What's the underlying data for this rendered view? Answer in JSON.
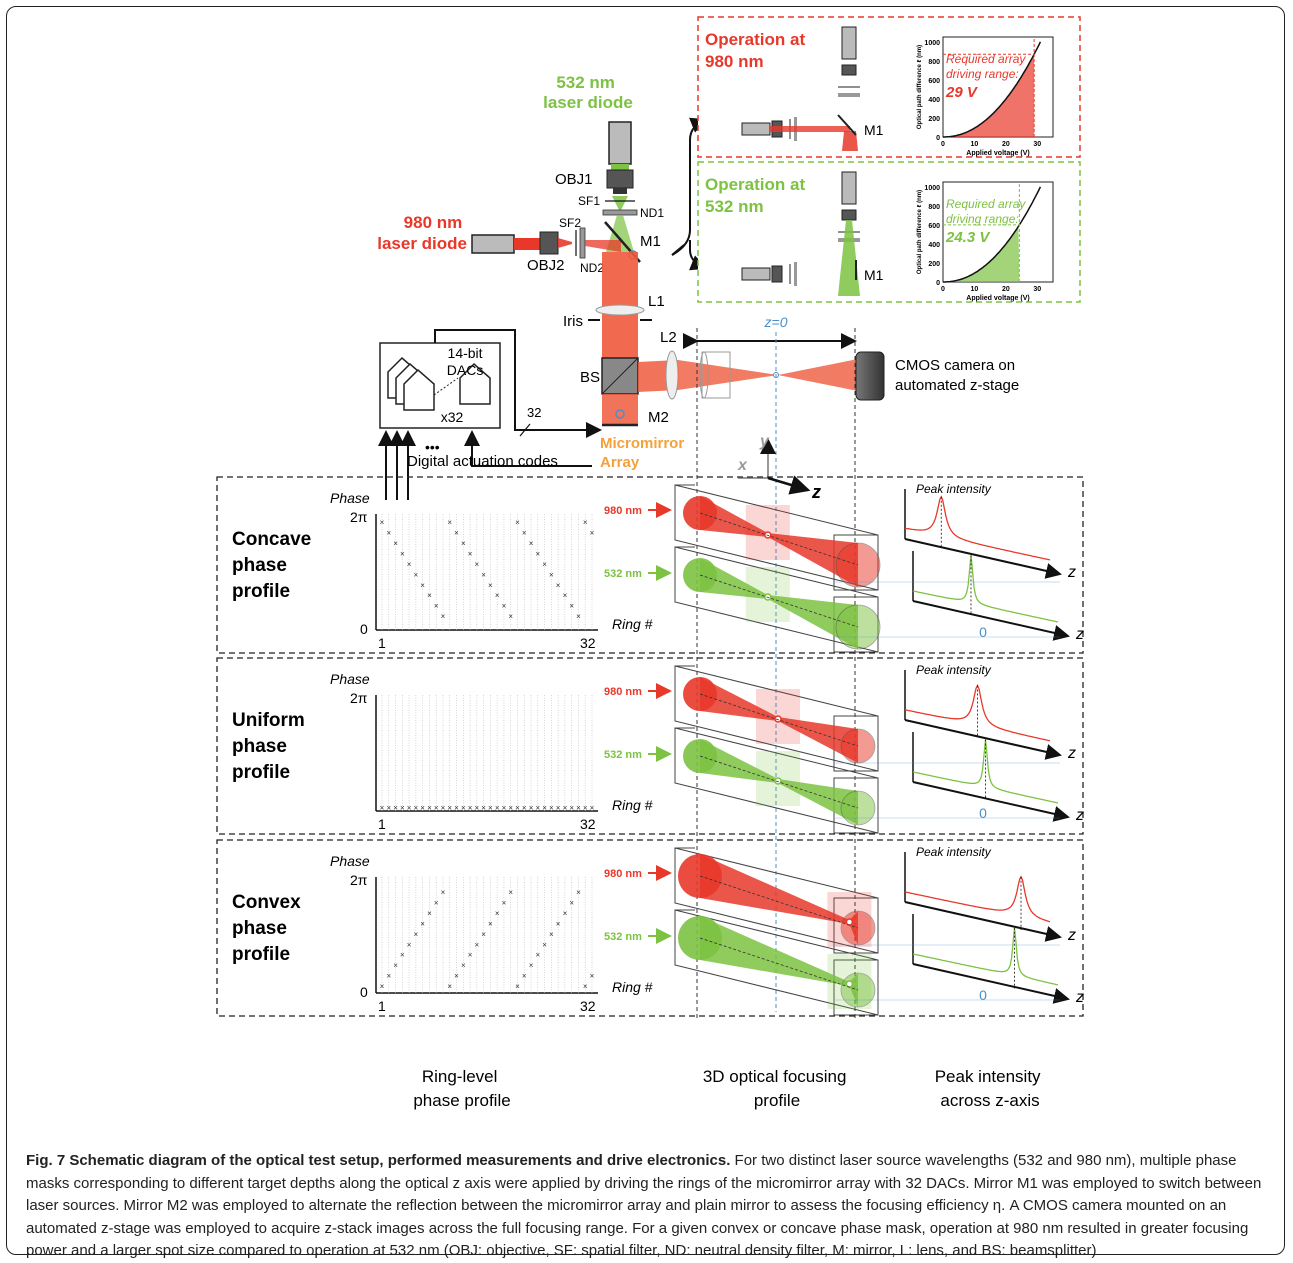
{
  "setup": {
    "laser532": [
      "532 nm",
      "laser diode"
    ],
    "laser980": [
      "980 nm",
      "laser diode"
    ],
    "obj1": "OBJ1",
    "obj2": "OBJ2",
    "sf1": "SF1",
    "sf2": "SF2",
    "nd1": "ND1",
    "nd2": "ND2",
    "m1": "M1",
    "m2": "M2",
    "l1": "L1",
    "l2": "L2",
    "iris": "Iris",
    "bs": "BS",
    "micromirror": [
      "Micromirror",
      "Array"
    ],
    "camera": [
      "CMOS camera on",
      "automated z-stage"
    ],
    "z0": "z=0",
    "dacs": [
      "14-bit",
      "DACs",
      "x32"
    ],
    "bus_width": "32",
    "digital_codes": "Digital actuation codes",
    "ellipsis": "•••",
    "axes": {
      "x": "x",
      "y": "y",
      "z": "z"
    },
    "colors": {
      "red": "#e8382a",
      "green": "#7dc242",
      "orange": "#f4a13b",
      "blue": "#4a90c8"
    }
  },
  "insets": [
    {
      "title": [
        "Operation at",
        "980 nm"
      ],
      "ylabel": "Optical path difference ℓ (nm)",
      "xlabel": "Applied voltage (V)",
      "yticks": [
        "0",
        "200",
        "400",
        "600",
        "800",
        "1000"
      ],
      "xticks": [
        "0",
        "10",
        "20",
        "30"
      ],
      "annotation": [
        "Required array",
        "driving range:"
      ],
      "value": "29 V",
      "mirror": "M1"
    },
    {
      "title": [
        "Operation at",
        "532 nm"
      ],
      "ylabel": "Optical path difference ℓ (nm)",
      "xlabel": "Applied voltage (V)",
      "yticks": [
        "0",
        "200",
        "400",
        "600",
        "800",
        "1000"
      ],
      "xticks": [
        "0",
        "10",
        "20",
        "30"
      ],
      "annotation": [
        "Required array",
        "driving range:"
      ],
      "value": "24.3 V",
      "mirror": "M1"
    }
  ],
  "rows": [
    {
      "name": [
        "Concave",
        "phase",
        "profile"
      ],
      "phase_label": "Phase",
      "two_pi": "2π",
      "zero": "0",
      "ring_label": "Ring #",
      "ring_start": "1",
      "ring_end": "32",
      "wl_red": "980 nm",
      "wl_green": "532 nm",
      "peak_label": "Peak intensity",
      "z_label": "z",
      "z_zero": "0"
    },
    {
      "name": [
        "Uniform",
        "phase",
        "profile"
      ],
      "phase_label": "Phase",
      "two_pi": "2π",
      "zero": "",
      "ring_label": "Ring #",
      "ring_start": "1",
      "ring_end": "32",
      "wl_red": "980 nm",
      "wl_green": "532 nm",
      "peak_label": "Peak intensity",
      "z_label": "z",
      "z_zero": "0"
    },
    {
      "name": [
        "Convex",
        "phase",
        "profile"
      ],
      "phase_label": "Phase",
      "two_pi": "2π",
      "zero": "0",
      "ring_label": "Ring #",
      "ring_start": "1",
      "ring_end": "32",
      "wl_red": "980 nm",
      "wl_green": "532 nm",
      "peak_label": "Peak intensity",
      "z_label": "z",
      "z_zero": "0"
    }
  ],
  "column_labels": [
    [
      "Ring-level",
      "phase profile"
    ],
    [
      "3D optical focusing",
      "profile"
    ],
    [
      "Peak intensity",
      "across z-axis"
    ]
  ],
  "caption": {
    "title": "Fig. 7 Schematic diagram of the optical test setup, performed measurements and drive electronics.",
    "body": "For two distinct laser source wavelengths (532 and 980 nm), multiple phase masks corresponding to different target depths along the optical z axis were applied by driving the rings of the micromirror array with 32 DACs. Mirror M1 was employed to switch between laser sources. Mirror M2 was employed to alternate the reflection between the micromirror array and plain mirror to assess the focusing efficiency η. A CMOS camera mounted on an automated z-stage was employed to acquire z-stack images across the full focusing range. For a given convex or concave phase mask, operation at 980 nm resulted in greater focusing power and a larger spot size compared to operation at 532 nm (OBJ: objective, SF: spatial filter, ND: neutral density filter, M: mirror, L: lens, and BS: beamsplitter)"
  }
}
